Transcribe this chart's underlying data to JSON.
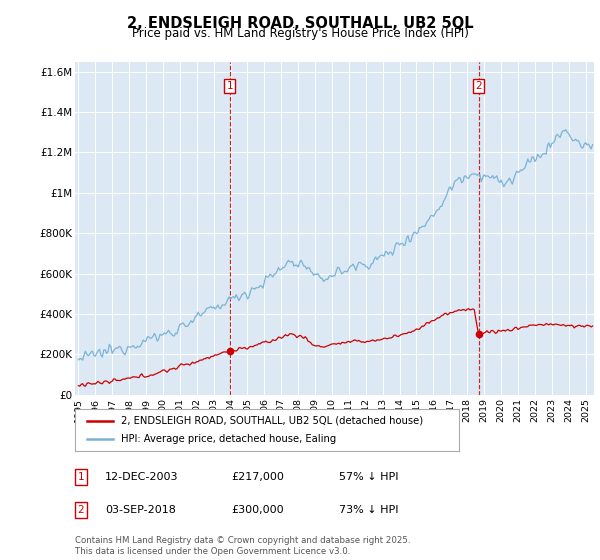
{
  "title": "2, ENDSLEIGH ROAD, SOUTHALL, UB2 5QL",
  "subtitle": "Price paid vs. HM Land Registry's House Price Index (HPI)",
  "hpi_color": "#7ab3d4",
  "price_color": "#cc0000",
  "dashed_line_color": "#cc0000",
  "plot_bg_color": "#dce9f5",
  "ylim": [
    0,
    1650000
  ],
  "yticks": [
    0,
    200000,
    400000,
    600000,
    800000,
    1000000,
    1200000,
    1400000,
    1600000
  ],
  "ytick_labels": [
    "£0",
    "£200K",
    "£400K",
    "£600K",
    "£800K",
    "£1M",
    "£1.2M",
    "£1.4M",
    "£1.6M"
  ],
  "sale1_date_num": 2003.95,
  "sale1_price": 217000,
  "sale1_label": "1",
  "sale2_date_num": 2018.67,
  "sale2_price": 300000,
  "sale2_label": "2",
  "legend_line1": "2, ENDSLEIGH ROAD, SOUTHALL, UB2 5QL (detached house)",
  "legend_line2": "HPI: Average price, detached house, Ealing",
  "table_row1": [
    "1",
    "12-DEC-2003",
    "£217,000",
    "57% ↓ HPI"
  ],
  "table_row2": [
    "2",
    "03-SEP-2018",
    "£300,000",
    "73% ↓ HPI"
  ],
  "footnote": "Contains HM Land Registry data © Crown copyright and database right 2025.\nThis data is licensed under the Open Government Licence v3.0.",
  "xmin": 1994.8,
  "xmax": 2025.5
}
